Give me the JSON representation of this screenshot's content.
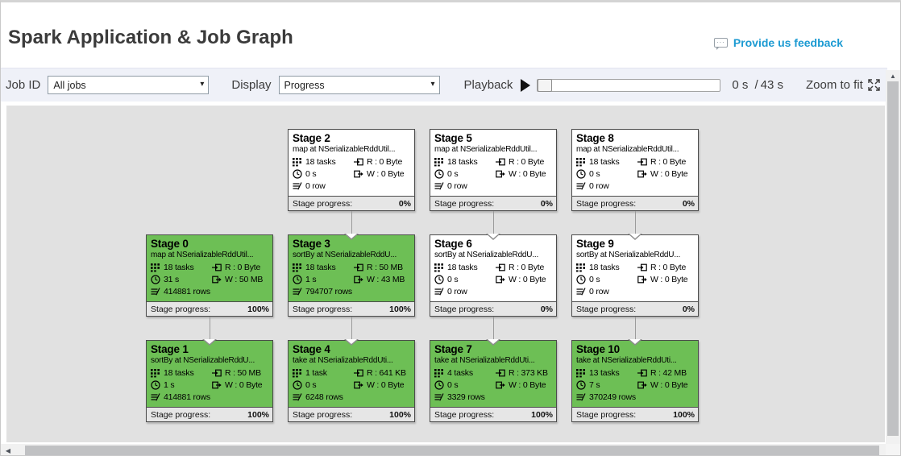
{
  "header": {
    "title": "Spark Application & Job Graph",
    "feedback_label": "Provide us feedback"
  },
  "toolbar": {
    "job_id_label": "Job ID",
    "job_id_value": "All jobs",
    "display_label": "Display",
    "display_value": "Progress",
    "playback_label": "Playback",
    "time_current": "0 s",
    "time_separator": "/",
    "time_total": "43 s",
    "zoom_label": "Zoom to fit"
  },
  "icons": {
    "dropdown_caret": "▾",
    "scroll_up_arrow": "▲",
    "scroll_left_arrow": "◀",
    "bubble_dots": "..."
  },
  "colors": {
    "link_blue": "#1b9ad2",
    "stage_complete_green": "#6dbf55",
    "stage_pending_white": "#ffffff",
    "graph_background": "#e1e1e1",
    "toolbar_background": "#eff1f8"
  },
  "graph": {
    "progress_label": "Stage progress:",
    "stages": [
      {
        "id": "stage-2",
        "title": "Stage 2",
        "subtitle": "map at NSerializableRddUtil...",
        "tasks": "18 tasks",
        "time": "0 s",
        "rows": "0 row",
        "read": "R : 0 Byte",
        "write": "W : 0 Byte",
        "progress": "0%",
        "complete": false,
        "col": 1,
        "row": 0
      },
      {
        "id": "stage-5",
        "title": "Stage 5",
        "subtitle": "map at NSerializableRddUtil...",
        "tasks": "18 tasks",
        "time": "0 s",
        "rows": "0 row",
        "read": "R : 0 Byte",
        "write": "W : 0 Byte",
        "progress": "0%",
        "complete": false,
        "col": 2,
        "row": 0
      },
      {
        "id": "stage-8",
        "title": "Stage 8",
        "subtitle": "map at NSerializableRddUtil...",
        "tasks": "18 tasks",
        "time": "0 s",
        "rows": "0 row",
        "read": "R : 0 Byte",
        "write": "W : 0 Byte",
        "progress": "0%",
        "complete": false,
        "col": 3,
        "row": 0
      },
      {
        "id": "stage-0",
        "title": "Stage 0",
        "subtitle": "map at NSerializableRddUtil...",
        "tasks": "18 tasks",
        "time": "31 s",
        "rows": "414881 rows",
        "read": "R : 0 Byte",
        "write": "W : 50 MB",
        "progress": "100%",
        "complete": true,
        "col": 0,
        "row": 1
      },
      {
        "id": "stage-3",
        "title": "Stage 3",
        "subtitle": "sortBy at NSerializableRddU...",
        "tasks": "18 tasks",
        "time": "1 s",
        "rows": "794707 rows",
        "read": "R : 50 MB",
        "write": "W : 43 MB",
        "progress": "100%",
        "complete": true,
        "col": 1,
        "row": 1
      },
      {
        "id": "stage-6",
        "title": "Stage 6",
        "subtitle": "sortBy at NSerializableRddU...",
        "tasks": "18 tasks",
        "time": "0 s",
        "rows": "0 row",
        "read": "R : 0 Byte",
        "write": "W : 0 Byte",
        "progress": "0%",
        "complete": false,
        "col": 2,
        "row": 1
      },
      {
        "id": "stage-9",
        "title": "Stage 9",
        "subtitle": "sortBy at NSerializableRddU...",
        "tasks": "18 tasks",
        "time": "0 s",
        "rows": "0 row",
        "read": "R : 0 Byte",
        "write": "W : 0 Byte",
        "progress": "0%",
        "complete": false,
        "col": 3,
        "row": 1
      },
      {
        "id": "stage-1",
        "title": "Stage 1",
        "subtitle": "sortBy at NSerializableRddU...",
        "tasks": "18 tasks",
        "time": "1 s",
        "rows": "414881 rows",
        "read": "R : 50 MB",
        "write": "W : 0 Byte",
        "progress": "100%",
        "complete": true,
        "col": 0,
        "row": 2
      },
      {
        "id": "stage-4",
        "title": "Stage 4",
        "subtitle": "take at NSerializableRddUti...",
        "tasks": "1 task",
        "time": "0 s",
        "rows": "6248 rows",
        "read": "R : 641 KB",
        "write": "W : 0 Byte",
        "progress": "100%",
        "complete": true,
        "col": 1,
        "row": 2
      },
      {
        "id": "stage-7",
        "title": "Stage 7",
        "subtitle": "take at NSerializableRddUti...",
        "tasks": "4 tasks",
        "time": "0 s",
        "rows": "3329 rows",
        "read": "R : 373 KB",
        "write": "W : 0 Byte",
        "progress": "100%",
        "complete": true,
        "col": 2,
        "row": 2
      },
      {
        "id": "stage-10",
        "title": "Stage 10",
        "subtitle": "take at NSerializableRddUti...",
        "tasks": "13 tasks",
        "time": "7 s",
        "rows": "370249 rows",
        "read": "R : 42 MB",
        "write": "W : 0 Byte",
        "progress": "100%",
        "complete": true,
        "col": 3,
        "row": 2
      }
    ],
    "edges": [
      {
        "from": "stage-2",
        "to": "stage-3"
      },
      {
        "from": "stage-5",
        "to": "stage-6"
      },
      {
        "from": "stage-8",
        "to": "stage-9"
      },
      {
        "from": "stage-0",
        "to": "stage-1"
      },
      {
        "from": "stage-3",
        "to": "stage-4"
      },
      {
        "from": "stage-6",
        "to": "stage-7"
      },
      {
        "from": "stage-9",
        "to": "stage-10"
      }
    ]
  }
}
